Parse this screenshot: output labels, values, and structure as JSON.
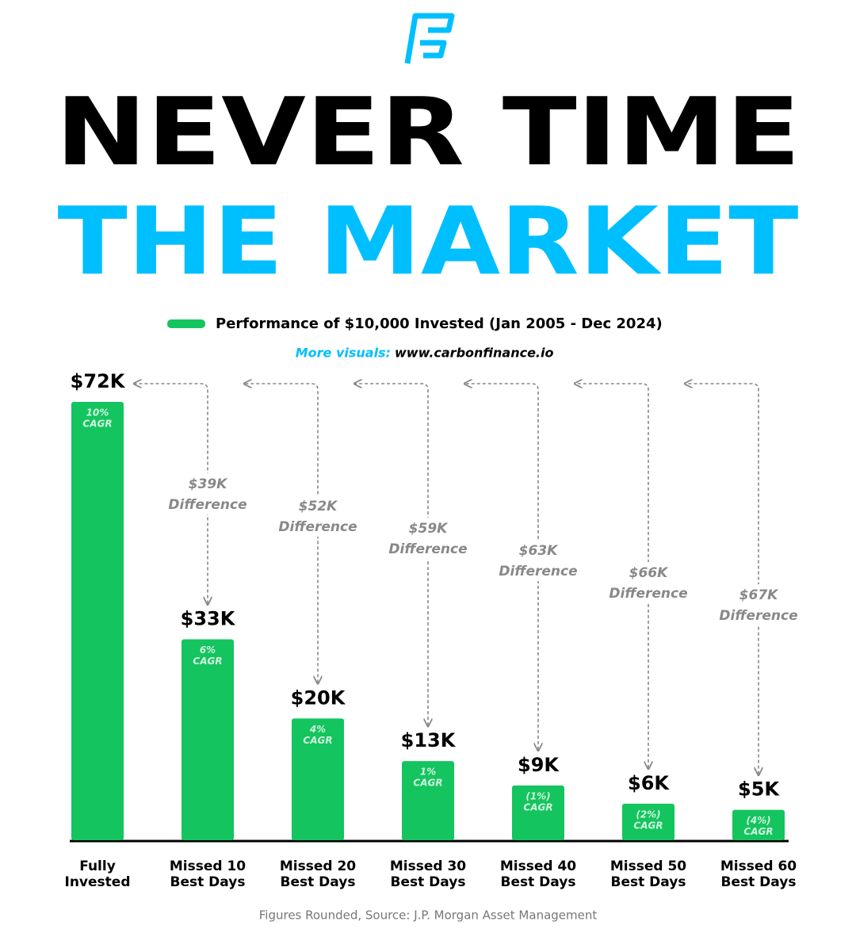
{
  "chart_data": {
    "type": "bar",
    "title": "NEVER TIME",
    "title_highlight": "THE MARKET",
    "subtitle_prefix": "More visuals:",
    "subtitle_link": "www.carbonfinance.io",
    "source": "Figures Rounded, Source: J.P. Morgan Asset Management",
    "categories": [
      "Fully Invested",
      "Missed 10 Best Days",
      "Missed 20 Best Days",
      "Missed 30 Best Days",
      "Missed 40 Best Days",
      "Missed 50 Best Days",
      "Missed 60 Best Days"
    ],
    "series": [
      {
        "name": "Performance of $10,000 Invested (Jan 2005 - Dec 2024)",
        "color": "#14c45e",
        "values": [
          72,
          33,
          20,
          13,
          9,
          6,
          5
        ],
        "value_labels": [
          "$72K",
          "$33K",
          "$20K",
          "$13K",
          "$9K",
          "$6K",
          "$5K"
        ]
      }
    ],
    "cagr": {
      "values": [
        10,
        6,
        4,
        1,
        -1,
        -2,
        -4
      ],
      "value_labels": [
        "10%",
        "6%",
        "4%",
        "1%",
        "(1%)",
        "(2%)",
        "(4%)"
      ],
      "caption": "CAGR"
    },
    "differences": {
      "values": [
        39,
        52,
        59,
        63,
        66,
        67
      ],
      "value_labels": [
        "$39K",
        "$52K",
        "$59K",
        "$63K",
        "$66K",
        "$67K"
      ],
      "caption": "Difference"
    }
  }
}
